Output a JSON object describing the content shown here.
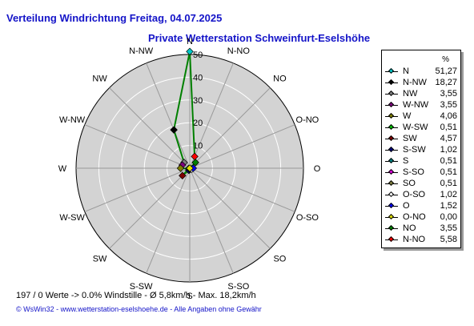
{
  "header": {
    "title": "Verteilung Windrichtung   Freitag, 04.07.2025",
    "station": "Private Wetterstation Schweinfurt-Eselshöhe"
  },
  "colors": {
    "title": "#1414c8",
    "plot_fill": "#d3d3d3",
    "ring": "#ffffff",
    "line": "#008000"
  },
  "chart_data": {
    "type": "radar",
    "unit": "%",
    "r_max": 50,
    "r_ticks": [
      10,
      20,
      30,
      40,
      50
    ],
    "directions": [
      "N",
      "N-NW",
      "NW",
      "W-NW",
      "W",
      "W-SW",
      "SW",
      "S-SW",
      "S",
      "S-SO",
      "SO",
      "O-SO",
      "O",
      "O-NO",
      "NO",
      "N-NO"
    ],
    "values": [
      51.27,
      18.27,
      3.55,
      3.55,
      4.06,
      0.51,
      4.57,
      1.02,
      0.51,
      0.51,
      0.51,
      1.02,
      1.52,
      0.0,
      3.55,
      5.58
    ]
  },
  "legend": {
    "unit": "%",
    "entries": [
      {
        "label": "N",
        "value": "51,27",
        "color": "#00c8c8"
      },
      {
        "label": "N-NW",
        "value": "18,27",
        "color": "#000000"
      },
      {
        "label": "NW",
        "value": "3,55",
        "color": "#808080"
      },
      {
        "label": "W-NW",
        "value": "3,55",
        "color": "#800080"
      },
      {
        "label": "W",
        "value": "4,06",
        "color": "#808000"
      },
      {
        "label": "W-SW",
        "value": "0,51",
        "color": "#00c000"
      },
      {
        "label": "SW",
        "value": "4,57",
        "color": "#800000"
      },
      {
        "label": "S-SW",
        "value": "1,02",
        "color": "#000080"
      },
      {
        "label": "S",
        "value": "0,51",
        "color": "#008080"
      },
      {
        "label": "S-SO",
        "value": "0,51",
        "color": "#e000e0"
      },
      {
        "label": "SO",
        "value": "0,51",
        "color": "#808040"
      },
      {
        "label": "O-SO",
        "value": "1,02",
        "color": "#ffffff"
      },
      {
        "label": "O",
        "value": "1,52",
        "color": "#0000ff"
      },
      {
        "label": "O-NO",
        "value": "0,00",
        "color": "#e0e000"
      },
      {
        "label": "NO",
        "value": "3,55",
        "color": "#008000"
      },
      {
        "label": "N-NO",
        "value": "5,58",
        "color": "#ff0000"
      }
    ]
  },
  "footer": {
    "stats": "197 / 0 Werte  -> 0.0% Windstille   -   Ø 5,8km/h   -  Max. 18,2km/h",
    "copyright": "© WsWin32  -  www.wetterstation-eselshoehe.de  -  Alle Angaben ohne Gewähr"
  }
}
